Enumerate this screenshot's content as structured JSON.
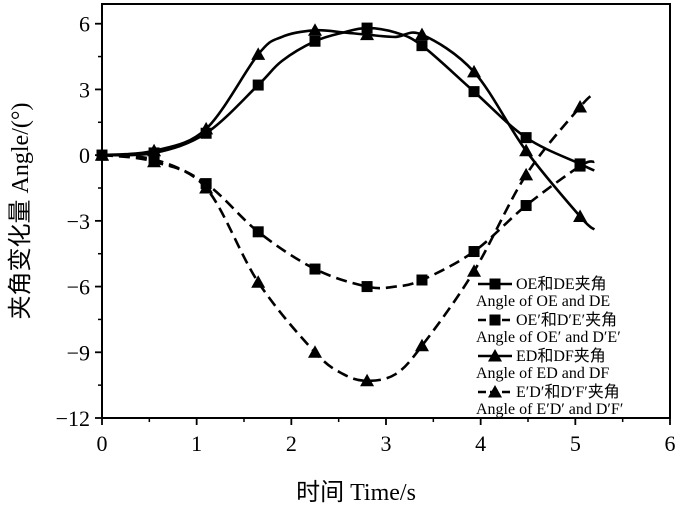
{
  "chart_data": {
    "type": "line",
    "xlabel": "时间 Time/s",
    "ylabel": "夹角变化量 Angle/(°)",
    "xlim": [
      0,
      6
    ],
    "ylim": [
      -12,
      6.9
    ],
    "xticks": [
      0,
      1,
      2,
      3,
      4,
      5,
      6
    ],
    "yticks": [
      6,
      3,
      0,
      -3,
      -6,
      -9,
      -12
    ],
    "xtick_labels": [
      "0",
      "1",
      "2",
      "3",
      "4",
      "5",
      "6"
    ],
    "ytick_labels": [
      "6",
      "3",
      "0",
      "−3",
      "−6",
      "−9",
      "−12"
    ],
    "grid": false,
    "legend_position": "lower-right",
    "series": [
      {
        "name": "OE和DE夹角\nAngle of OE and DE",
        "line": "solid",
        "marker": "square",
        "x": [
          0.0,
          0.55,
          1.1,
          1.65,
          2.25,
          2.8,
          3.38,
          3.93,
          4.48,
          5.05
        ],
        "y": [
          0.0,
          0.1,
          1.0,
          3.2,
          5.2,
          5.8,
          5.0,
          2.9,
          0.8,
          -0.4
        ],
        "curve_x": [
          0.0,
          0.55,
          1.1,
          1.65,
          1.9,
          2.25,
          2.55,
          2.8,
          3.1,
          3.38,
          3.93,
          4.48,
          5.05,
          5.2
        ],
        "curve_y": [
          0.0,
          0.1,
          1.0,
          3.2,
          4.3,
          5.2,
          5.6,
          5.8,
          5.6,
          5.0,
          2.9,
          0.8,
          -0.4,
          -0.7
        ]
      },
      {
        "name": "OE′和D′E′夹角\nAngle of OE′ and D′E′",
        "line": "dashed",
        "marker": "square",
        "x": [
          0.0,
          0.55,
          1.1,
          1.65,
          2.25,
          2.8,
          3.38,
          3.93,
          4.48,
          5.05
        ],
        "y": [
          0.0,
          -0.2,
          -1.3,
          -3.5,
          -5.2,
          -6.0,
          -5.7,
          -4.4,
          -2.3,
          -0.5
        ],
        "curve_x": [
          0.0,
          0.55,
          1.1,
          1.65,
          2.25,
          2.8,
          3.1,
          3.38,
          3.93,
          4.48,
          5.05,
          5.2
        ],
        "curve_y": [
          0.0,
          -0.2,
          -1.3,
          -3.5,
          -5.2,
          -6.0,
          -6.0,
          -5.7,
          -4.4,
          -2.3,
          -0.5,
          -0.3
        ]
      },
      {
        "name": "ED和DF夹角\nAngle of ED and DF",
        "line": "solid",
        "marker": "triangle",
        "x": [
          0.0,
          0.55,
          1.1,
          1.65,
          2.25,
          2.8,
          3.38,
          3.93,
          4.48,
          5.05
        ],
        "y": [
          0.0,
          0.2,
          1.2,
          4.6,
          5.7,
          5.5,
          5.5,
          3.8,
          0.2,
          -2.8
        ],
        "curve_x": [
          0.0,
          0.55,
          1.1,
          1.65,
          1.9,
          2.25,
          2.55,
          2.8,
          3.1,
          3.38,
          3.93,
          4.48,
          5.05,
          5.2
        ],
        "curve_y": [
          0.0,
          0.2,
          1.2,
          4.6,
          5.4,
          5.7,
          5.6,
          5.5,
          5.4,
          5.5,
          3.8,
          0.2,
          -2.8,
          -3.4
        ]
      },
      {
        "name": "E′D′和D′F′夹角\nAngle of E′D′ and D′F′",
        "line": "dashed",
        "marker": "triangle",
        "x": [
          0.0,
          0.55,
          1.1,
          1.65,
          2.25,
          2.8,
          3.38,
          3.93,
          4.48,
          5.05
        ],
        "y": [
          0.0,
          -0.3,
          -1.5,
          -5.8,
          -9.0,
          -10.3,
          -8.7,
          -5.3,
          -0.9,
          2.2
        ],
        "curve_x": [
          0.0,
          0.55,
          1.1,
          1.65,
          2.25,
          2.55,
          2.8,
          3.1,
          3.38,
          3.93,
          4.48,
          5.05,
          5.2
        ],
        "curve_y": [
          0.0,
          -0.3,
          -1.5,
          -5.8,
          -9.0,
          -10.0,
          -10.3,
          -10.0,
          -8.7,
          -5.3,
          -0.9,
          2.2,
          2.8
        ]
      }
    ]
  }
}
